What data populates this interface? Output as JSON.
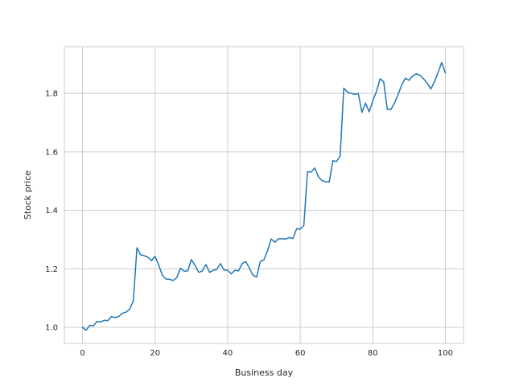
{
  "chart_data": {
    "type": "line",
    "title": "",
    "xlabel": "Business day",
    "ylabel": "Stock price",
    "xlim": [
      -5,
      105
    ],
    "ylim": [
      0.945,
      1.96
    ],
    "xticks": [
      0,
      20,
      40,
      60,
      80,
      100
    ],
    "xtick_labels": [
      "0",
      "20",
      "40",
      "60",
      "80",
      "100"
    ],
    "yticks": [
      1.0,
      1.2,
      1.4,
      1.6,
      1.8
    ],
    "ytick_labels": [
      "1.0",
      "1.2",
      "1.4",
      "1.6",
      "1.8"
    ],
    "grid": true,
    "line_color": "#1f77b4",
    "x": [
      0,
      1,
      2,
      3,
      4,
      5,
      6,
      7,
      8,
      9,
      10,
      11,
      12,
      13,
      14,
      15,
      16,
      17,
      18,
      19,
      20,
      21,
      22,
      23,
      24,
      25,
      26,
      27,
      28,
      29,
      30,
      31,
      32,
      33,
      34,
      35,
      36,
      37,
      38,
      39,
      40,
      41,
      42,
      43,
      44,
      45,
      46,
      47,
      48,
      49,
      50,
      51,
      52,
      53,
      54,
      55,
      56,
      57,
      58,
      59,
      60,
      61,
      62,
      63,
      64,
      65,
      66,
      67,
      68,
      69,
      70,
      71,
      72,
      73,
      74,
      75,
      76,
      77,
      78,
      79,
      80,
      81,
      82,
      83,
      84,
      85,
      86,
      87,
      88,
      89,
      90,
      91,
      92,
      93,
      94,
      95,
      96,
      97,
      98,
      99,
      100
    ],
    "values": [
      1.0,
      0.99,
      1.007,
      1.005,
      1.02,
      1.018,
      1.024,
      1.023,
      1.037,
      1.033,
      1.037,
      1.048,
      1.052,
      1.062,
      1.09,
      1.272,
      1.248,
      1.245,
      1.24,
      1.228,
      1.243,
      1.213,
      1.178,
      1.165,
      1.164,
      1.16,
      1.17,
      1.202,
      1.192,
      1.193,
      1.232,
      1.212,
      1.188,
      1.192,
      1.215,
      1.188,
      1.195,
      1.198,
      1.218,
      1.196,
      1.195,
      1.183,
      1.195,
      1.193,
      1.218,
      1.225,
      1.202,
      1.178,
      1.172,
      1.225,
      1.231,
      1.262,
      1.302,
      1.291,
      1.303,
      1.303,
      1.302,
      1.307,
      1.304,
      1.337,
      1.336,
      1.348,
      1.532,
      1.531,
      1.545,
      1.515,
      1.502,
      1.498,
      1.497,
      1.57,
      1.567,
      1.585,
      1.818,
      1.805,
      1.8,
      1.797,
      1.8,
      1.735,
      1.767,
      1.737,
      1.775,
      1.806,
      1.85,
      1.84,
      1.745,
      1.745,
      1.768,
      1.797,
      1.83,
      1.852,
      1.845,
      1.86,
      1.867,
      1.862,
      1.85,
      1.835,
      1.815,
      1.84,
      1.872,
      1.906,
      1.87
    ]
  }
}
